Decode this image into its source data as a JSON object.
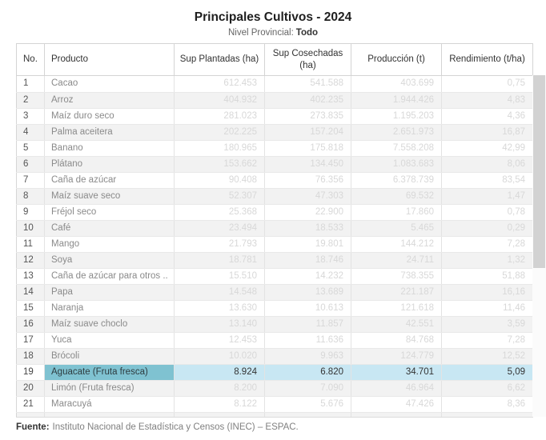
{
  "header": {
    "title": "Principales Cultivos - 2024",
    "subtitle_label": "Nivel Provincial:",
    "subtitle_value": "Todo"
  },
  "table": {
    "columns": [
      "No.",
      "Producto",
      "Sup Plantadas (ha)",
      "Sup Cosechadas (ha)",
      "Producción (t)",
      "Rendimiento (t/ha)"
    ],
    "selected_row_no": "19",
    "rows": [
      {
        "no": "1",
        "producto": "Cacao",
        "plantadas": "612.453",
        "cosechadas": "541.588",
        "produccion": "403.699",
        "rendimiento": "0,75"
      },
      {
        "no": "2",
        "producto": "Arroz",
        "plantadas": "404.932",
        "cosechadas": "402.235",
        "produccion": "1.944.426",
        "rendimiento": "4,83"
      },
      {
        "no": "3",
        "producto": "Maíz duro seco",
        "plantadas": "281.023",
        "cosechadas": "273.835",
        "produccion": "1.195.203",
        "rendimiento": "4,36"
      },
      {
        "no": "4",
        "producto": "Palma aceitera",
        "plantadas": "202.225",
        "cosechadas": "157.204",
        "produccion": "2.651.973",
        "rendimiento": "16,87"
      },
      {
        "no": "5",
        "producto": "Banano",
        "plantadas": "180.965",
        "cosechadas": "175.818",
        "produccion": "7.558.208",
        "rendimiento": "42,99"
      },
      {
        "no": "6",
        "producto": "Plátano",
        "plantadas": "153.662",
        "cosechadas": "134.450",
        "produccion": "1.083.683",
        "rendimiento": "8,06"
      },
      {
        "no": "7",
        "producto": "Caña de azúcar",
        "plantadas": "90.408",
        "cosechadas": "76.356",
        "produccion": "6.378.739",
        "rendimiento": "83,54"
      },
      {
        "no": "8",
        "producto": "Maíz suave seco",
        "plantadas": "52.307",
        "cosechadas": "47.303",
        "produccion": "69.532",
        "rendimiento": "1,47"
      },
      {
        "no": "9",
        "producto": "Fréjol seco",
        "plantadas": "25.368",
        "cosechadas": "22.900",
        "produccion": "17.860",
        "rendimiento": "0,78"
      },
      {
        "no": "10",
        "producto": "Café",
        "plantadas": "23.494",
        "cosechadas": "18.533",
        "produccion": "5.465",
        "rendimiento": "0,29"
      },
      {
        "no": "11",
        "producto": "Mango",
        "plantadas": "21.793",
        "cosechadas": "19.801",
        "produccion": "144.212",
        "rendimiento": "7,28"
      },
      {
        "no": "12",
        "producto": "Soya",
        "plantadas": "18.781",
        "cosechadas": "18.746",
        "produccion": "24.711",
        "rendimiento": "1,32"
      },
      {
        "no": "13",
        "producto": "Caña de azúcar para otros ..",
        "plantadas": "15.510",
        "cosechadas": "14.232",
        "produccion": "738.355",
        "rendimiento": "51,88"
      },
      {
        "no": "14",
        "producto": "Papa",
        "plantadas": "14.548",
        "cosechadas": "13.689",
        "produccion": "221.187",
        "rendimiento": "16,16"
      },
      {
        "no": "15",
        "producto": "Naranja",
        "plantadas": "13.630",
        "cosechadas": "10.613",
        "produccion": "121.618",
        "rendimiento": "11,46"
      },
      {
        "no": "16",
        "producto": "Maíz suave choclo",
        "plantadas": "13.140",
        "cosechadas": "11.857",
        "produccion": "42.551",
        "rendimiento": "3,59"
      },
      {
        "no": "17",
        "producto": "Yuca",
        "plantadas": "12.453",
        "cosechadas": "11.636",
        "produccion": "84.768",
        "rendimiento": "7,28"
      },
      {
        "no": "18",
        "producto": "Brócoli",
        "plantadas": "10.020",
        "cosechadas": "9.963",
        "produccion": "124.779",
        "rendimiento": "12,52"
      },
      {
        "no": "19",
        "producto": "Aguacate (Fruta fresca)",
        "plantadas": "8.924",
        "cosechadas": "6.820",
        "produccion": "34.701",
        "rendimiento": "5,09"
      },
      {
        "no": "20",
        "producto": "Limón (Fruta fresca)",
        "plantadas": "8.200",
        "cosechadas": "7.090",
        "produccion": "46.964",
        "rendimiento": "6,62"
      },
      {
        "no": "21",
        "producto": "Maracuyá",
        "plantadas": "8.122",
        "cosechadas": "5.676",
        "produccion": "47.426",
        "rendimiento": "8,36"
      },
      {
        "no": "",
        "producto": "",
        "plantadas": "",
        "cosechadas": "",
        "produccion": "",
        "rendimiento": "",
        "partial": true
      }
    ]
  },
  "footer": {
    "source_label": "Fuente:",
    "source_text": "Instituto Nacional de Estadística y Censos (INEC) – ESPAC."
  },
  "colors": {
    "highlight_product_bg": "#7fc2d1",
    "highlight_cells_bg": "#c8e7f3",
    "highlight_border": "#62b3c6",
    "row_stripe_bg": "#f2f2f2",
    "muted_value_text": "#d8d8d8",
    "scrollbar_thumb": "#d2d2d2"
  }
}
